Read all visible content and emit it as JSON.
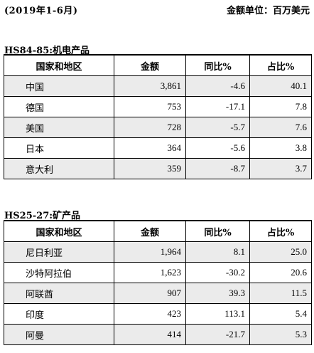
{
  "header": {
    "period": "(2019年1-6月)",
    "unit": "金额单位：百万美元"
  },
  "tables": [
    {
      "title": "HS84-85:机电产品",
      "columns": [
        "国家和地区",
        "金额",
        "同比%",
        "占比%"
      ],
      "rows": [
        [
          "中国",
          "3,861",
          "-4.6",
          "40.1"
        ],
        [
          "德国",
          "753",
          "-17.1",
          "7.8"
        ],
        [
          "美国",
          "728",
          "-5.7",
          "7.6"
        ],
        [
          "日本",
          "364",
          "-5.6",
          "3.8"
        ],
        [
          "意大利",
          "359",
          "-8.7",
          "3.7"
        ]
      ]
    },
    {
      "title": "HS25-27:矿产品",
      "columns": [
        "国家和地区",
        "金额",
        "同比%",
        "占比%"
      ],
      "rows": [
        [
          "尼日利亚",
          "1,964",
          "8.1",
          "25.0"
        ],
        [
          "沙特阿拉伯",
          "1,623",
          "-30.2",
          "20.6"
        ],
        [
          "阿联酋",
          "907",
          "39.3",
          "11.5"
        ],
        [
          "印度",
          "423",
          "113.1",
          "5.4"
        ],
        [
          "阿曼",
          "414",
          "-21.7",
          "5.3"
        ]
      ]
    }
  ]
}
